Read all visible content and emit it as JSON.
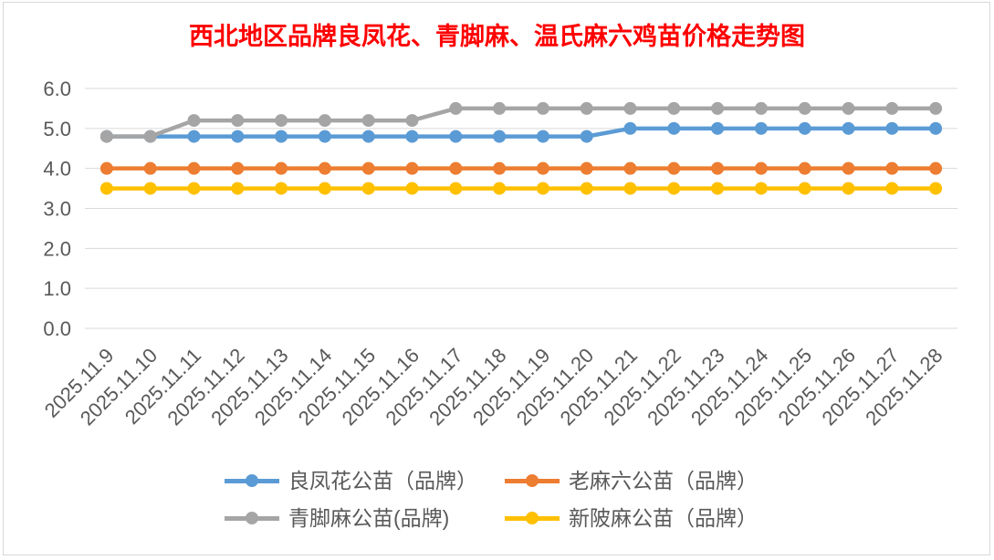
{
  "chart_data": {
    "type": "line",
    "title": "西北地区品牌良凤花、青脚麻、温氏麻六鸡苗价格走势图",
    "title_color": "#FF0000",
    "categories": [
      "2025.11.9",
      "2025.11.10",
      "2025.11.11",
      "2025.11.12",
      "2025.11.13",
      "2025.11.14",
      "2025.11.15",
      "2025.11.16",
      "2025.11.17",
      "2025.11.18",
      "2025.11.19",
      "2025.11.20",
      "2025.11.21",
      "2025.11.22",
      "2025.11.23",
      "2025.11.24",
      "2025.11.25",
      "2025.11.26",
      "2025.11.27",
      "2025.11.28"
    ],
    "series": [
      {
        "name": "良凤花公苗（品牌）",
        "color": "#5B9BD5",
        "values": [
          4.8,
          4.8,
          4.8,
          4.8,
          4.8,
          4.8,
          4.8,
          4.8,
          4.8,
          4.8,
          4.8,
          4.8,
          5.0,
          5.0,
          5.0,
          5.0,
          5.0,
          5.0,
          5.0,
          5.0
        ]
      },
      {
        "name": "老麻六公苗（品牌）",
        "color": "#ED7D31",
        "values": [
          4.0,
          4.0,
          4.0,
          4.0,
          4.0,
          4.0,
          4.0,
          4.0,
          4.0,
          4.0,
          4.0,
          4.0,
          4.0,
          4.0,
          4.0,
          4.0,
          4.0,
          4.0,
          4.0,
          4.0
        ]
      },
      {
        "name": "青脚麻公苗(品牌)",
        "color": "#A5A5A5",
        "values": [
          4.8,
          4.8,
          5.2,
          5.2,
          5.2,
          5.2,
          5.2,
          5.2,
          5.5,
          5.5,
          5.5,
          5.5,
          5.5,
          5.5,
          5.5,
          5.5,
          5.5,
          5.5,
          5.5,
          5.5
        ]
      },
      {
        "name": "新陂麻公苗（品牌）",
        "color": "#FFC000",
        "values": [
          3.5,
          3.5,
          3.5,
          3.5,
          3.5,
          3.5,
          3.5,
          3.5,
          3.5,
          3.5,
          3.5,
          3.5,
          3.5,
          3.5,
          3.5,
          3.5,
          3.5,
          3.5,
          3.5,
          3.5
        ]
      }
    ],
    "ylim": [
      0,
      6
    ],
    "yticks": [
      "0.0",
      "1.0",
      "2.0",
      "3.0",
      "4.0",
      "5.0",
      "6.0"
    ],
    "grid": true,
    "gridline_color": "#D9D9D9",
    "text_color": "#595959",
    "legend_position": "bottom"
  }
}
